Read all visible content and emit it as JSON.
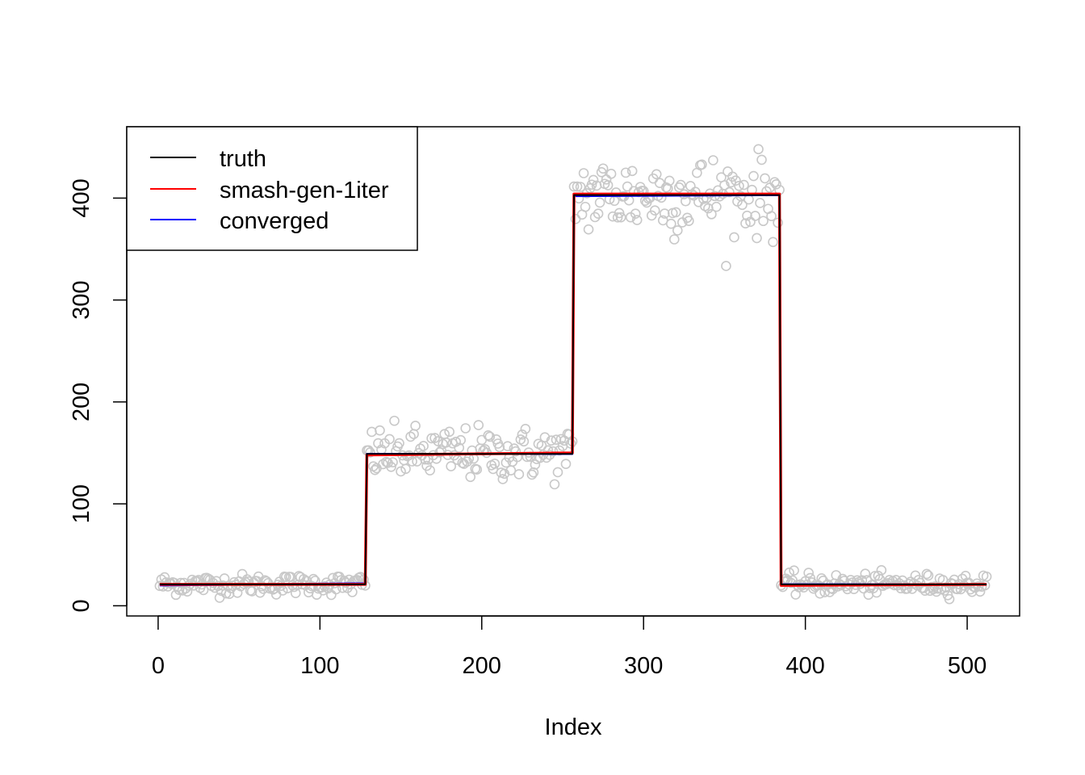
{
  "chart_data": {
    "type": "line",
    "title": "",
    "xlabel": "Index",
    "ylabel": "",
    "xlim": [
      -19.4,
      532.4
    ],
    "ylim": [
      -10,
      470
    ],
    "x_ticks": [
      0,
      100,
      200,
      300,
      400,
      500
    ],
    "y_ticks": [
      0,
      100,
      200,
      300,
      400
    ],
    "grid": false,
    "legend_position": "top-left",
    "colors": {
      "points": "#c8c8c8",
      "truth": "#000000",
      "smash": "#ff0000",
      "converged": "#0000ff"
    },
    "legend": [
      {
        "label": "truth",
        "color": "#000000"
      },
      {
        "label": "smash-gen-1iter",
        "color": "#ff0000"
      },
      {
        "label": "converged",
        "color": "#0000ff"
      }
    ],
    "segments": [
      {
        "x_start": 1,
        "x_end": 128,
        "level": 21,
        "noise_sd": 5
      },
      {
        "x_start": 129,
        "x_end": 256,
        "level": 149,
        "noise_sd": 13
      },
      {
        "x_start": 257,
        "x_end": 384,
        "level": 403,
        "noise_sd": 20
      },
      {
        "x_start": 385,
        "x_end": 512,
        "level": 21,
        "noise_sd": 5
      }
    ],
    "n_points": 512,
    "series": [
      {
        "name": "truth",
        "type": "line",
        "steps": [
          [
            1,
            21
          ],
          [
            128,
            21
          ],
          [
            129,
            149
          ],
          [
            256,
            149
          ],
          [
            257,
            403
          ],
          [
            384,
            403
          ],
          [
            385,
            21
          ],
          [
            512,
            21
          ]
        ]
      },
      {
        "name": "smash-gen-1iter",
        "type": "line",
        "steps": [
          [
            1,
            21
          ],
          [
            128,
            21
          ],
          [
            129,
            148
          ],
          [
            256,
            150
          ],
          [
            257,
            404
          ],
          [
            384,
            404
          ],
          [
            385,
            20
          ],
          [
            512,
            21
          ]
        ]
      },
      {
        "name": "converged",
        "type": "line",
        "steps": [
          [
            1,
            20
          ],
          [
            128,
            22
          ],
          [
            129,
            149
          ],
          [
            256,
            149
          ],
          [
            257,
            402
          ],
          [
            384,
            403
          ],
          [
            385,
            21
          ],
          [
            512,
            21
          ]
        ]
      }
    ]
  }
}
